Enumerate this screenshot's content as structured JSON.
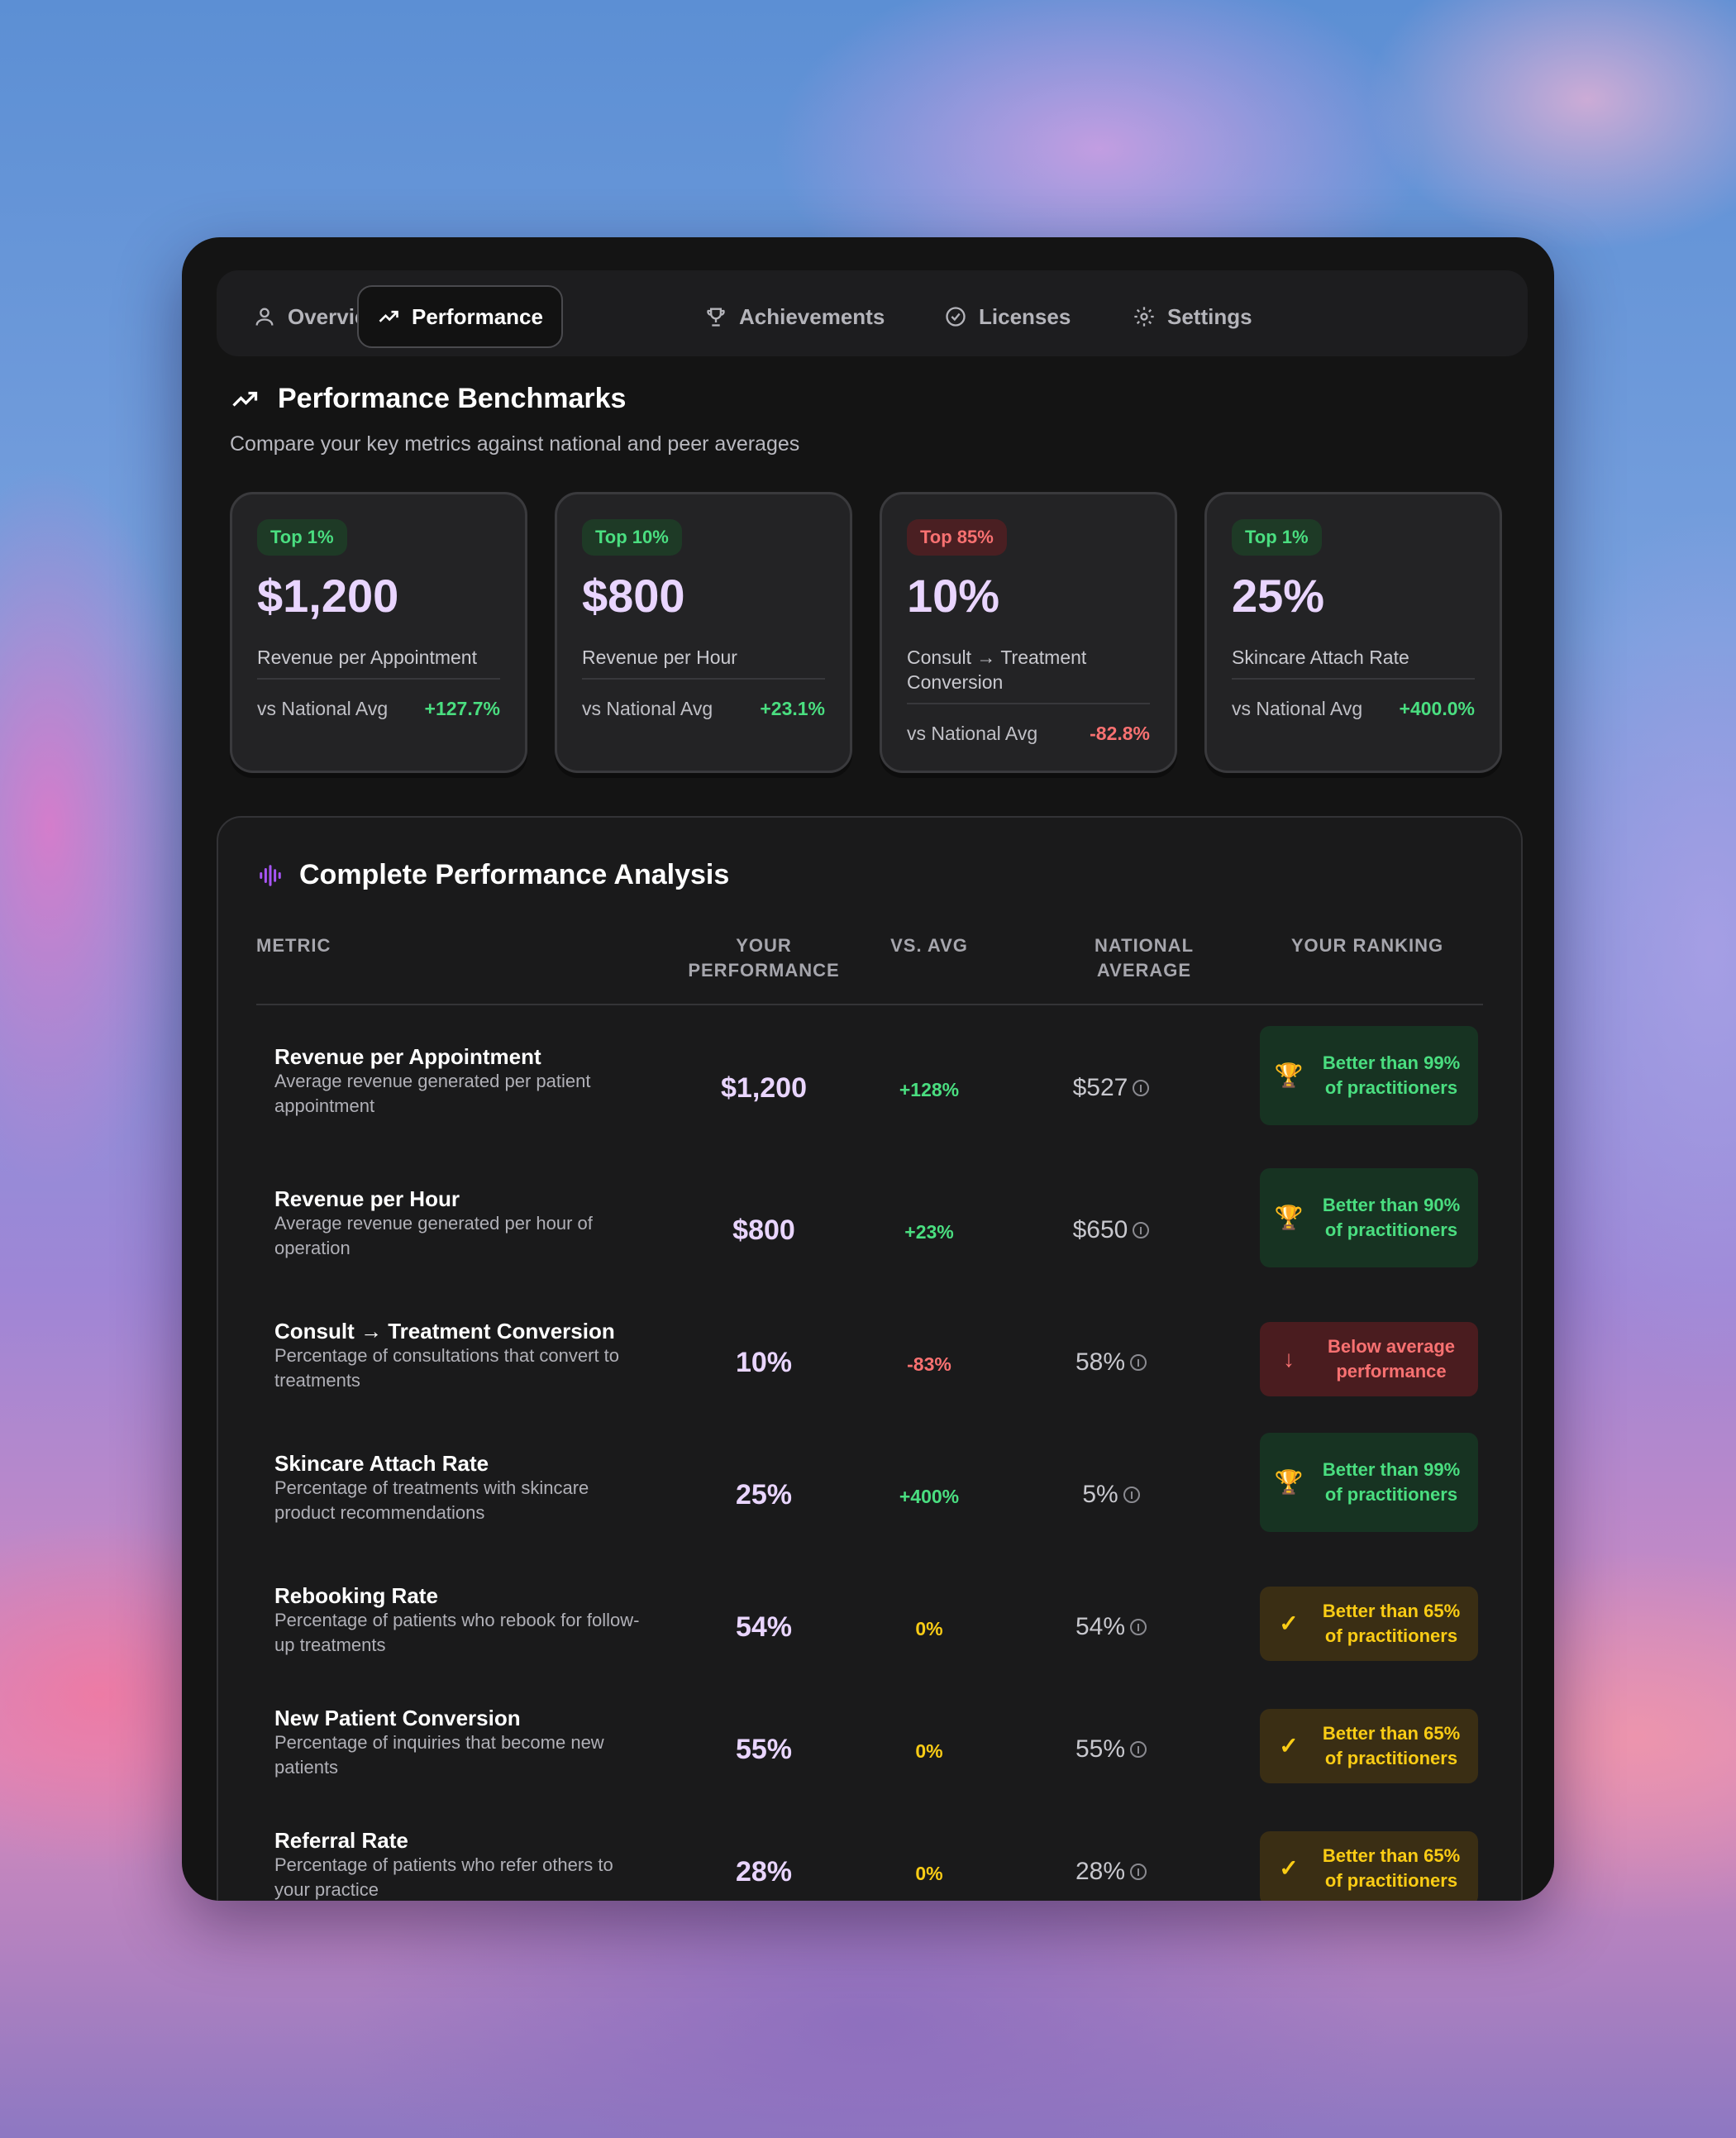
{
  "tabs": [
    {
      "label": "Overview",
      "icon": "user-icon",
      "active": false
    },
    {
      "label": "Performance",
      "icon": "trending-up-icon",
      "active": true
    },
    {
      "label": "Achievements",
      "icon": "trophy-icon",
      "active": false
    },
    {
      "label": "Licenses",
      "icon": "check-circle-icon",
      "active": false
    },
    {
      "label": "Settings",
      "icon": "gear-icon",
      "active": false
    }
  ],
  "benchmarks": {
    "title": "Performance Benchmarks",
    "subtitle": "Compare your key metrics against national and peer averages",
    "cards": [
      {
        "badge": "Top 1%",
        "badge_tone": "green",
        "value": "$1,200",
        "label": "Revenue per Appointment",
        "compare_label": "vs National Avg",
        "delta": "+127.7%",
        "delta_tone": "positive"
      },
      {
        "badge": "Top 10%",
        "badge_tone": "green",
        "value": "$800",
        "label": "Revenue per Hour",
        "compare_label": "vs National Avg",
        "delta": "+23.1%",
        "delta_tone": "positive"
      },
      {
        "badge": "Top 85%",
        "badge_tone": "red",
        "value": "10%",
        "label": "Consult → Treatment Conversion",
        "compare_label": "vs National Avg",
        "delta": "-82.8%",
        "delta_tone": "negative"
      },
      {
        "badge": "Top 1%",
        "badge_tone": "green",
        "value": "25%",
        "label": "Skincare Attach Rate",
        "compare_label": "vs National Avg",
        "delta": "+400.0%",
        "delta_tone": "positive"
      }
    ]
  },
  "analysis": {
    "title": "Complete Performance Analysis",
    "columns": {
      "metric": "METRIC",
      "performance_1": "YOUR",
      "performance_2": "PERFORMANCE",
      "vs_avg": "VS. AVG",
      "national_1": "NATIONAL",
      "national_2": "AVERAGE",
      "ranking": "YOUR RANKING"
    },
    "rows": [
      {
        "name": "Revenue per Appointment",
        "desc": "Average revenue generated per patient appointment",
        "value": "$1,200",
        "vs": "+128%",
        "vs_tone": "positive",
        "national": "$527",
        "rank": "Better than 99% of practitioners",
        "rank_tone": "good",
        "rank_icon": "🏆"
      },
      {
        "name": "Revenue per Hour",
        "desc": "Average revenue generated per hour of operation",
        "value": "$800",
        "vs": "+23%",
        "vs_tone": "positive",
        "national": "$650",
        "rank": "Better than 90% of practitioners",
        "rank_tone": "good",
        "rank_icon": "🏆"
      },
      {
        "name": "Consult → Treatment Conversion",
        "desc": "Percentage of consultations that convert to treatments",
        "value": "10%",
        "vs": "-83%",
        "vs_tone": "negative",
        "national": "58%",
        "rank": "Below average performance",
        "rank_tone": "bad",
        "rank_icon": "↓"
      },
      {
        "name": "Skincare Attach Rate",
        "desc": "Percentage of treatments with skincare product recommendations",
        "value": "25%",
        "vs": "+400%",
        "vs_tone": "positive",
        "national": "5%",
        "rank": "Better than 99% of practitioners",
        "rank_tone": "good",
        "rank_icon": "🏆"
      },
      {
        "name": "Rebooking Rate",
        "desc": "Percentage of patients who rebook for follow-up treatments",
        "value": "54%",
        "vs": "0%",
        "vs_tone": "neutral",
        "national": "54%",
        "rank": "Better than 65% of practitioners",
        "rank_tone": "mid",
        "rank_icon": "✓"
      },
      {
        "name": "New Patient Conversion",
        "desc": "Percentage of inquiries that become new patients",
        "value": "55%",
        "vs": "0%",
        "vs_tone": "neutral",
        "national": "55%",
        "rank": "Better than 65% of practitioners",
        "rank_tone": "mid",
        "rank_icon": "✓"
      },
      {
        "name": "Referral Rate",
        "desc": "Percentage of patients who refer others to your practice",
        "value": "28%",
        "vs": "0%",
        "vs_tone": "neutral",
        "national": "28%",
        "rank": "Better than 65% of practitioners",
        "rank_tone": "mid",
        "rank_icon": "✓"
      }
    ]
  },
  "colors": {
    "positive": "#4ade80",
    "negative": "#f87171",
    "neutral": "#facc15",
    "value": "#e9d5ff",
    "accent_icon": "#a855f7"
  }
}
